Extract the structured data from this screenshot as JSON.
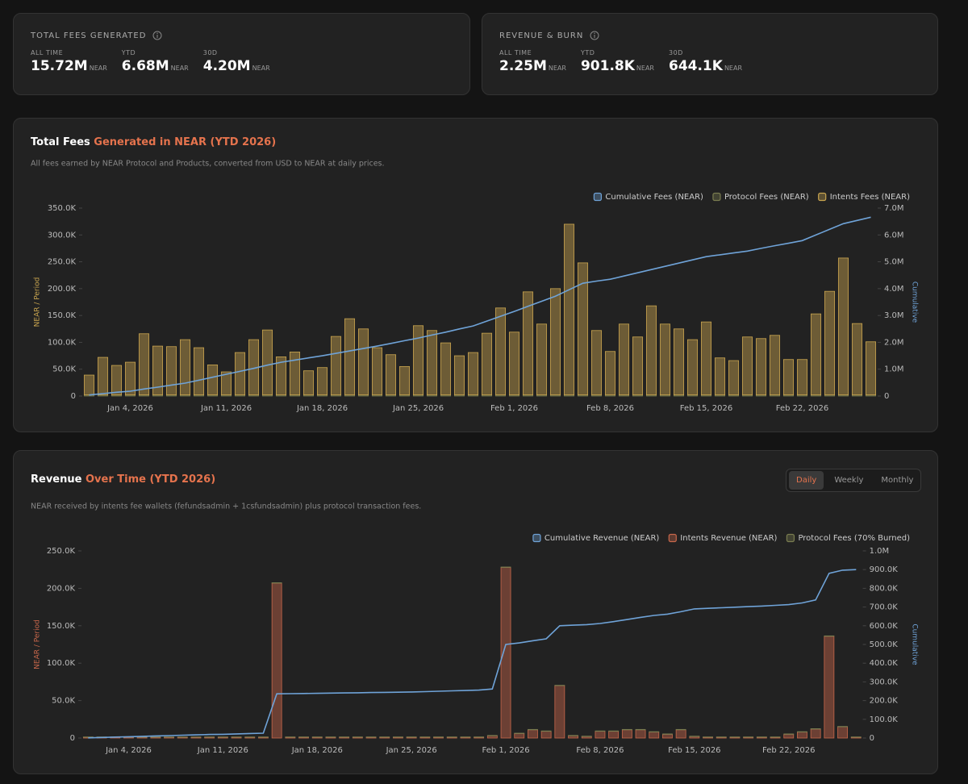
{
  "cards": [
    {
      "title": "TOTAL FEES GENERATED",
      "stats": [
        {
          "label": "ALL TIME",
          "value": "15.72M",
          "unit": "NEAR"
        },
        {
          "label": "YTD",
          "value": "6.68M",
          "unit": "NEAR"
        },
        {
          "label": "30D",
          "value": "4.20M",
          "unit": "NEAR"
        }
      ]
    },
    {
      "title": "REVENUE & BURN",
      "stats": [
        {
          "label": "ALL TIME",
          "value": "2.25M",
          "unit": "NEAR"
        },
        {
          "label": "YTD",
          "value": "901.8K",
          "unit": "NEAR"
        },
        {
          "label": "30D",
          "value": "644.1K",
          "unit": "NEAR"
        }
      ]
    }
  ],
  "toggle": [
    "Daily",
    "Weekly",
    "Monthly"
  ],
  "chart_data": [
    {
      "type": "bar",
      "stacked": true,
      "title": "Total Fees",
      "title_highlight": " Generated in NEAR (YTD 2026)",
      "subtitle": "All fees earned by NEAR Protocol and Products, converted from USD to NEAR at daily prices.",
      "y_label": "NEAR / Period",
      "y2_label": "Cumulative",
      "grid": false,
      "categories": [
        null,
        null,
        null,
        "Jan 4, 2026",
        null,
        null,
        null,
        null,
        null,
        null,
        "Jan 11, 2026",
        null,
        null,
        null,
        null,
        null,
        null,
        "Jan 18, 2026",
        null,
        null,
        null,
        null,
        null,
        null,
        "Jan 25, 2026",
        null,
        null,
        null,
        null,
        null,
        null,
        "Feb 1, 2026",
        null,
        null,
        null,
        null,
        null,
        null,
        "Feb 8, 2026",
        null,
        null,
        null,
        null,
        null,
        null,
        "Feb 15, 2026",
        null,
        null,
        null,
        null,
        null,
        null,
        "Feb 22, 2026",
        null,
        null,
        null,
        null,
        null
      ],
      "ylim": [
        0,
        350000
      ],
      "yticks": [
        0,
        {
          "value": 50000,
          "label": "50.0K"
        },
        {
          "value": 100000,
          "label": "100.0K"
        },
        {
          "value": 150000,
          "label": "150.0K"
        },
        {
          "value": 200000,
          "label": "200.0K"
        },
        {
          "value": 250000,
          "label": "250.0K"
        },
        {
          "value": 300000,
          "label": "300.0K"
        },
        {
          "value": 350000,
          "label": "350.0K"
        }
      ],
      "y2lim": [
        0,
        7000000
      ],
      "y2ticks": [
        0,
        {
          "value": 1000000,
          "label": "1.0M"
        },
        {
          "value": 2000000,
          "label": "2.0M"
        },
        {
          "value": 3000000,
          "label": "3.0M"
        },
        {
          "value": 4000000,
          "label": "4.0M"
        },
        {
          "value": 5000000,
          "label": "5.0M"
        },
        {
          "value": 6000000,
          "label": "6.0M"
        },
        {
          "value": 7000000,
          "label": "7.0M"
        }
      ],
      "series": [
        {
          "name": "Cumulative Fees (NEAR)",
          "type": "line",
          "axis": "y2",
          "color": "#6fa3d8",
          "values": [
            40000,
            90000,
            140000,
            180000,
            260000,
            330000,
            410000,
            480000,
            590000,
            700000,
            810000,
            920000,
            1030000,
            1150000,
            1260000,
            1340000,
            1420000,
            1500000,
            1590000,
            1680000,
            1770000,
            1860000,
            1960000,
            2060000,
            2160000,
            2270000,
            2380000,
            2500000,
            2610000,
            2790000,
            2970000,
            3150000,
            3340000,
            3530000,
            3720000,
            3960000,
            4200000,
            4280000,
            4350000,
            4470000,
            4590000,
            4710000,
            4830000,
            4950000,
            5070000,
            5190000,
            5260000,
            5330000,
            5400000,
            5500000,
            5600000,
            5690000,
            5790000,
            6000000,
            6210000,
            6420000,
            6540000,
            6660000
          ]
        },
        {
          "name": "Protocol Fees (NEAR)",
          "color": "#7a7d50",
          "values": [
            2000,
            2000,
            2000,
            2000,
            2000,
            2000,
            2000,
            2000,
            2000,
            2000,
            2000,
            2000,
            2000,
            2000,
            2000,
            2000,
            2000,
            2000,
            2000,
            2000,
            2000,
            2000,
            2000,
            2000,
            2000,
            2000,
            2000,
            2000,
            2000,
            2000,
            2000,
            2000,
            2000,
            2000,
            2000,
            2000,
            2000,
            2000,
            2000,
            2000,
            2000,
            2000,
            2000,
            2000,
            2000,
            2000,
            2000,
            2000,
            2000,
            2000,
            2000,
            2000,
            2000,
            2000,
            2000,
            2000,
            2000,
            2000
          ]
        },
        {
          "name": "Intents Fees (NEAR)",
          "color": "#c9a54f",
          "values": [
            37000,
            70000,
            55000,
            61000,
            114000,
            91000,
            90000,
            103000,
            88000,
            56000,
            43000,
            79000,
            103000,
            121000,
            71000,
            80000,
            45000,
            51000,
            109000,
            142000,
            123000,
            88000,
            75000,
            53000,
            129000,
            120000,
            97000,
            73000,
            79000,
            115000,
            162000,
            117000,
            192000,
            132000,
            198000,
            318000,
            246000,
            120000,
            81000,
            132000,
            108000,
            166000,
            132000,
            123000,
            103000,
            136000,
            69000,
            64000,
            108000,
            105000,
            111000,
            66000,
            66000,
            151000,
            193000,
            255000,
            133000,
            99000
          ]
        }
      ]
    },
    {
      "type": "bar",
      "stacked": true,
      "title": "Revenue",
      "title_highlight": " Over Time (YTD 2026)",
      "subtitle": "NEAR received by intents fee wallets (fefundsadmin + 1csfundsadmin) plus protocol transaction fees.",
      "y_label": "NEAR / Period",
      "y2_label": "Cumulative",
      "grid": false,
      "categories": [
        null,
        null,
        null,
        "Jan 4, 2026",
        null,
        null,
        null,
        null,
        null,
        null,
        "Jan 11, 2026",
        null,
        null,
        null,
        null,
        null,
        null,
        "Jan 18, 2026",
        null,
        null,
        null,
        null,
        null,
        null,
        "Jan 25, 2026",
        null,
        null,
        null,
        null,
        null,
        null,
        "Feb 1, 2026",
        null,
        null,
        null,
        null,
        null,
        null,
        "Feb 8, 2026",
        null,
        null,
        null,
        null,
        null,
        null,
        "Feb 15, 2026",
        null,
        null,
        null,
        null,
        null,
        null,
        "Feb 22, 2026",
        null,
        null,
        null,
        null,
        null
      ],
      "ylim": [
        0,
        250000
      ],
      "yticks": [
        0,
        {
          "value": 50000,
          "label": "50.0K"
        },
        {
          "value": 100000,
          "label": "100.0K"
        },
        {
          "value": 150000,
          "label": "150.0K"
        },
        {
          "value": 200000,
          "label": "200.0K"
        },
        {
          "value": 250000,
          "label": "250.0K"
        }
      ],
      "y2lim": [
        0,
        1000000
      ],
      "y2ticks": [
        0,
        {
          "value": 100000,
          "label": "100.0K"
        },
        {
          "value": 200000,
          "label": "200.0K"
        },
        {
          "value": 300000,
          "label": "300.0K"
        },
        {
          "value": 400000,
          "label": "400.0K"
        },
        {
          "value": 500000,
          "label": "500.0K"
        },
        {
          "value": 600000,
          "label": "600.0K"
        },
        {
          "value": 700000,
          "label": "700.0K"
        },
        {
          "value": 800000,
          "label": "800.0K"
        },
        {
          "value": 900000,
          "label": "900.0K"
        },
        {
          "value": 1000000,
          "label": "1.0M"
        }
      ],
      "series": [
        {
          "name": "Cumulative Revenue (NEAR)",
          "type": "line",
          "axis": "y2",
          "color": "#6fa3d8",
          "values": [
            1000,
            3000,
            5000,
            7000,
            9000,
            11000,
            13000,
            15000,
            17000,
            19000,
            20000,
            22000,
            24000,
            26000,
            236000,
            237000,
            238000,
            239000,
            240000,
            241000,
            242000,
            243000,
            244000,
            245000,
            246000,
            248000,
            250000,
            252000,
            254000,
            256000,
            262000,
            500000,
            508000,
            520000,
            530000,
            600000,
            603000,
            606000,
            612000,
            622000,
            633000,
            645000,
            655000,
            662000,
            675000,
            690000,
            693000,
            696000,
            699000,
            702000,
            705000,
            709000,
            713000,
            722000,
            738000,
            880000,
            897000,
            900000
          ]
        },
        {
          "name": "Intents Revenue (NEAR)",
          "color": "#c8674b",
          "values": [
            1000,
            1000,
            1000,
            1000,
            1000,
            1000,
            1000,
            1000,
            1000,
            1000,
            1000,
            1000,
            1000,
            1000,
            207000,
            1000,
            1000,
            1000,
            1000,
            1000,
            1000,
            1000,
            1000,
            1000,
            1000,
            1000,
            1000,
            1000,
            1000,
            1000,
            3000,
            228000,
            6000,
            11000,
            9000,
            70000,
            3000,
            2000,
            9000,
            9000,
            11000,
            11000,
            8000,
            5000,
            11000,
            2000,
            1000,
            1000,
            1000,
            1000,
            1000,
            1000,
            5000,
            8000,
            12000,
            136000,
            15000,
            1000
          ]
        },
        {
          "name": "Protocol Fees (70% Burned)",
          "color": "#7a7d50",
          "values": [
            500,
            500,
            500,
            500,
            500,
            500,
            500,
            500,
            500,
            500,
            500,
            500,
            500,
            500,
            500,
            500,
            500,
            500,
            500,
            500,
            500,
            500,
            500,
            500,
            500,
            500,
            500,
            500,
            500,
            500,
            500,
            500,
            500,
            500,
            500,
            500,
            500,
            500,
            500,
            500,
            500,
            500,
            500,
            500,
            500,
            500,
            500,
            500,
            500,
            500,
            500,
            500,
            500,
            500,
            500,
            500,
            500,
            500
          ]
        }
      ]
    }
  ]
}
